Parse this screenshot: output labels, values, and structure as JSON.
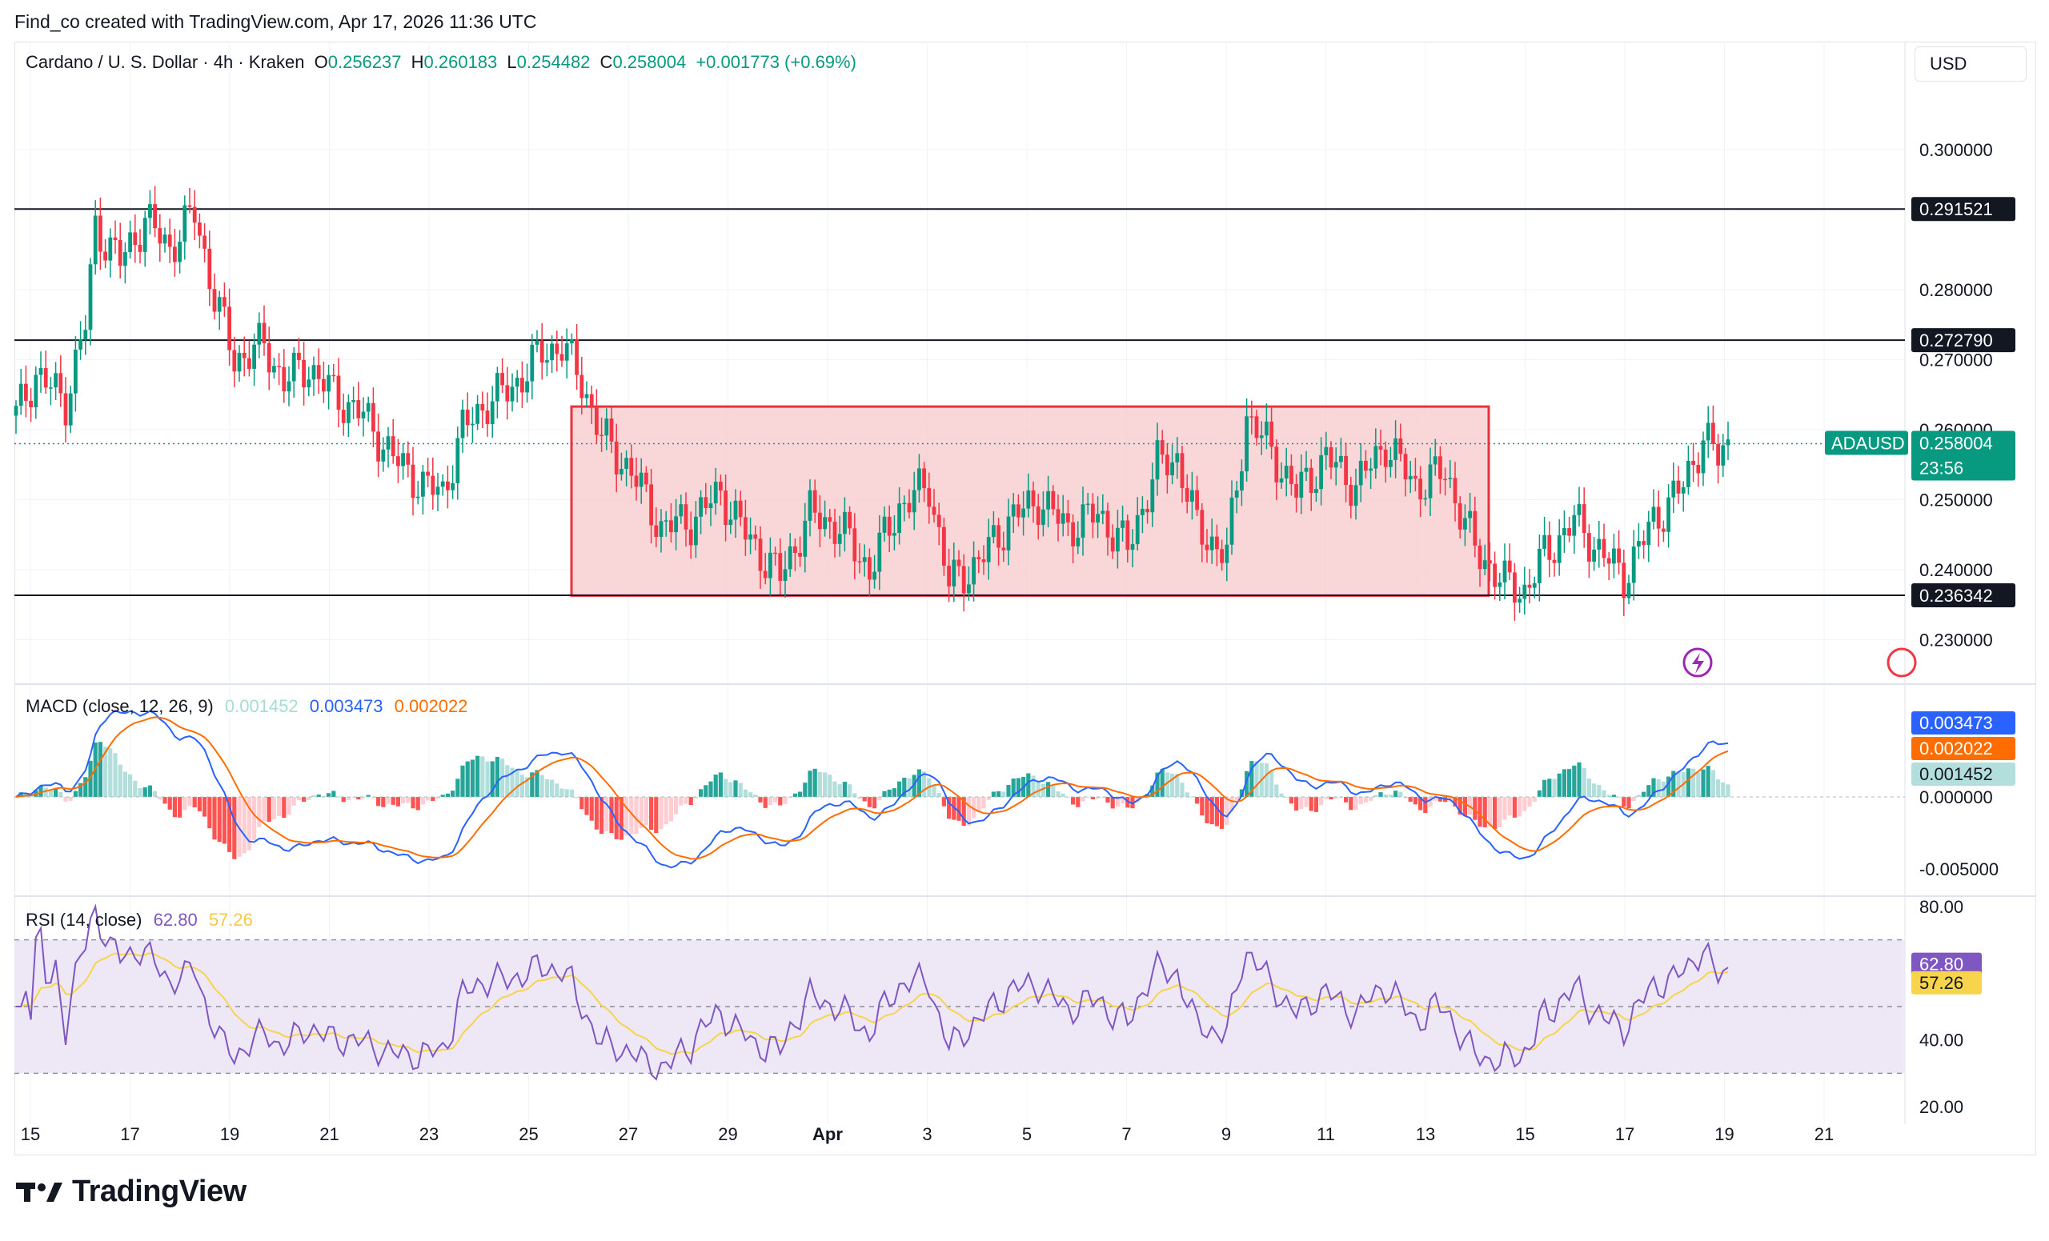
{
  "header": {
    "note": "Find_co created with TradingView.com, Apr 17, 2026 11:36 UTC"
  },
  "legend": {
    "symbol": "Cardano / U. S. Dollar · 4h · Kraken",
    "o_label": "O",
    "o_value": "0.256237",
    "h_label": "H",
    "h_value": "0.260183",
    "l_label": "L",
    "l_value": "0.254482",
    "c_label": "C",
    "c_value": "0.258004",
    "change": "+0.001773 (+0.69%)"
  },
  "currency_button": "USD",
  "brand": "TradingView",
  "colors": {
    "up": "#089981",
    "down": "#f23645",
    "zone_fill": "#f7c9cc",
    "zone_stroke": "#e8323f",
    "macd_line": "#2962ff",
    "signal_line": "#ff6d00",
    "rsi_line": "#7e57c2",
    "rsi_ma": "#f7d44c",
    "rsi_band": "#ede7f6"
  },
  "chart_data": [
    {
      "type": "candlestick",
      "title": "Cardano / U. S. Dollar · 4h · Kraken",
      "y_axis": {
        "ticks": [
          "0.300000",
          "0.280000",
          "0.270000",
          "0.260000",
          "0.250000",
          "0.240000",
          "0.230000"
        ],
        "ylim": [
          0.226,
          0.305
        ]
      },
      "x_axis": {
        "ticks": [
          "15",
          "17",
          "19",
          "21",
          "23",
          "25",
          "27",
          "29",
          "Apr",
          "3",
          "5",
          "7",
          "9",
          "11",
          "13",
          "15",
          "17",
          "19",
          "21"
        ]
      },
      "horizontal_levels": [
        "0.291521",
        "0.272790",
        "0.236342"
      ],
      "current_price_tag": {
        "symbol": "ADAUSD",
        "price": "0.258004",
        "countdown": "23:56"
      },
      "range_zone": {
        "from": "Mar 25",
        "to": "Apr 13",
        "top": 0.2633,
        "bottom": 0.2363
      },
      "close_path": [
        {
          "t": 0,
          "c": 0.262
        },
        {
          "t": 4,
          "c": 0.268
        },
        {
          "t": 10,
          "c": 0.264
        },
        {
          "t": 14,
          "c": 0.275
        },
        {
          "t": 16,
          "c": 0.289
        },
        {
          "t": 21,
          "c": 0.284
        },
        {
          "t": 26,
          "c": 0.29
        },
        {
          "t": 31,
          "c": 0.286
        },
        {
          "t": 36,
          "c": 0.291
        },
        {
          "t": 40,
          "c": 0.279
        },
        {
          "t": 44,
          "c": 0.27
        },
        {
          "t": 50,
          "c": 0.272
        },
        {
          "t": 54,
          "c": 0.267
        },
        {
          "t": 59,
          "c": 0.269
        },
        {
          "t": 64,
          "c": 0.265
        },
        {
          "t": 70,
          "c": 0.262
        },
        {
          "t": 76,
          "c": 0.256
        },
        {
          "t": 82,
          "c": 0.252
        },
        {
          "t": 86,
          "c": 0.251
        },
        {
          "t": 90,
          "c": 0.26
        },
        {
          "t": 95,
          "c": 0.264
        },
        {
          "t": 100,
          "c": 0.266
        },
        {
          "t": 106,
          "c": 0.271
        },
        {
          "t": 110,
          "c": 0.272
        },
        {
          "t": 114,
          "c": 0.267
        },
        {
          "t": 118,
          "c": 0.259
        },
        {
          "t": 124,
          "c": 0.254
        },
        {
          "t": 130,
          "c": 0.246
        },
        {
          "t": 136,
          "c": 0.247
        },
        {
          "t": 142,
          "c": 0.251
        },
        {
          "t": 148,
          "c": 0.244
        },
        {
          "t": 154,
          "c": 0.239
        },
        {
          "t": 160,
          "c": 0.248
        },
        {
          "t": 166,
          "c": 0.246
        },
        {
          "t": 172,
          "c": 0.24
        },
        {
          "t": 178,
          "c": 0.249
        },
        {
          "t": 184,
          "c": 0.252
        },
        {
          "t": 188,
          "c": 0.238
        },
        {
          "t": 194,
          "c": 0.241
        },
        {
          "t": 200,
          "c": 0.247
        },
        {
          "t": 206,
          "c": 0.25
        },
        {
          "t": 212,
          "c": 0.246
        },
        {
          "t": 218,
          "c": 0.248
        },
        {
          "t": 224,
          "c": 0.243
        },
        {
          "t": 230,
          "c": 0.255
        },
        {
          "t": 234,
          "c": 0.256
        },
        {
          "t": 238,
          "c": 0.246
        },
        {
          "t": 244,
          "c": 0.242
        },
        {
          "t": 248,
          "c": 0.262
        },
        {
          "t": 252,
          "c": 0.258
        },
        {
          "t": 258,
          "c": 0.251
        },
        {
          "t": 264,
          "c": 0.256
        },
        {
          "t": 270,
          "c": 0.252
        },
        {
          "t": 276,
          "c": 0.258
        },
        {
          "t": 282,
          "c": 0.252
        },
        {
          "t": 288,
          "c": 0.254
        },
        {
          "t": 294,
          "c": 0.243
        },
        {
          "t": 300,
          "c": 0.238
        },
        {
          "t": 304,
          "c": 0.237
        },
        {
          "t": 308,
          "c": 0.242
        },
        {
          "t": 314,
          "c": 0.247
        },
        {
          "t": 320,
          "c": 0.242
        },
        {
          "t": 324,
          "c": 0.239
        },
        {
          "t": 330,
          "c": 0.247
        },
        {
          "t": 336,
          "c": 0.252
        },
        {
          "t": 340,
          "c": 0.259
        },
        {
          "t": 343,
          "c": 0.256
        },
        {
          "t": 345,
          "c": 0.258
        }
      ]
    },
    {
      "type": "line",
      "title": "MACD (close, 12, 26, 9)",
      "values": {
        "histogram": "0.001452",
        "macd": "0.003473",
        "signal": "0.002022"
      },
      "y_axis": {
        "ticks": [
          "0.000000",
          "-0.005000"
        ]
      }
    },
    {
      "type": "line",
      "title": "RSI (14, close)",
      "values": {
        "rsi": "62.80",
        "rsi_ma": "57.26"
      },
      "y_axis": {
        "ticks": [
          "80.00",
          "40.00",
          "20.00"
        ],
        "ylim": [
          20,
          80
        ],
        "bands": [
          70,
          50,
          30
        ]
      }
    }
  ]
}
